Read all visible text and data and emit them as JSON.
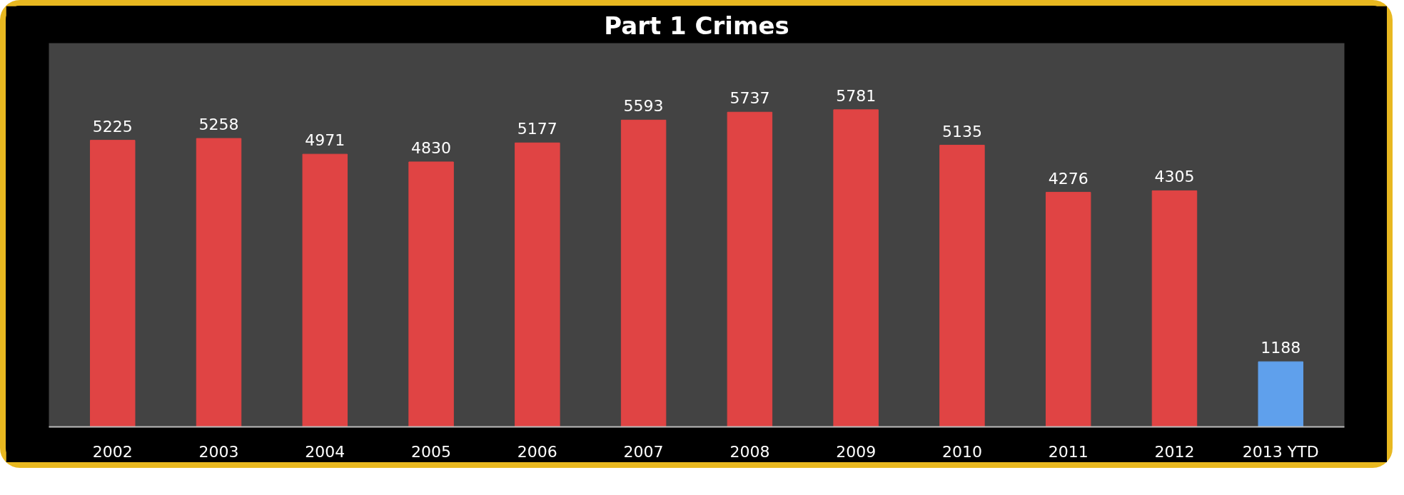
{
  "chart_data": {
    "type": "bar",
    "title": "Part 1 Crimes",
    "categories": [
      "2002",
      "2003",
      "2004",
      "2005",
      "2006",
      "2007",
      "2008",
      "2009",
      "2010",
      "2011",
      "2012",
      "2013 YTD"
    ],
    "values": [
      5225,
      5258,
      4971,
      4830,
      5177,
      5593,
      5737,
      5781,
      5135,
      4276,
      4305,
      1188
    ],
    "colors": [
      "#e04444",
      "#e04444",
      "#e04444",
      "#e04444",
      "#e04444",
      "#e04444",
      "#e04444",
      "#e04444",
      "#e04444",
      "#e04444",
      "#e04444",
      "#5fa0ec"
    ],
    "data_labels": true
  }
}
